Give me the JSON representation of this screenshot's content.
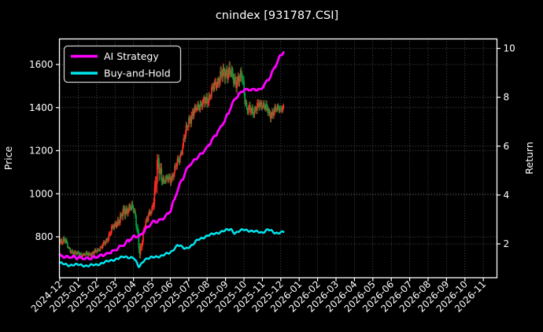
{
  "title": "cnindex [931787.CSI]",
  "chart_data": {
    "type": "candlestick+line",
    "title": "cnindex [931787.CSI]",
    "background_color": "#000000",
    "text_color": "#ffffff",
    "grid": "dotted",
    "x_axis": {
      "tick_labels": [
        "2024-12",
        "2025-01",
        "2025-02",
        "2025-03",
        "2025-04",
        "2025-05",
        "2025-06",
        "2025-07",
        "2025-08",
        "2025-09",
        "2025-10",
        "2025-11",
        "2025-12",
        "2026-01",
        "2026-02",
        "2026-03",
        "2026-04",
        "2026-05",
        "2026-06",
        "2026-07",
        "2026-08",
        "2026-09",
        "2026-10",
        "2026-11"
      ],
      "data_span_months": 12.15,
      "data_start": "2024-12",
      "data_end": "2025-12"
    },
    "price_axis": {
      "label": "Price",
      "side": "left",
      "ticks": [
        800,
        1000,
        1200,
        1400,
        1600
      ],
      "range": [
        610,
        1720
      ]
    },
    "return_axis": {
      "label": "Return",
      "side": "right",
      "ticks": [
        2,
        4,
        6,
        8,
        10
      ],
      "range": [
        0.6,
        10.4
      ]
    },
    "legend": {
      "position": "upper-left",
      "items": [
        {
          "label": "AI Strategy",
          "color": "#ff00ff"
        },
        {
          "label": "Buy-and-Hold",
          "color": "#00e5ee"
        }
      ]
    },
    "series": [
      {
        "name": "AI Strategy",
        "type": "line",
        "axis": "return",
        "color": "#ff00ff",
        "width": 2.8,
        "points": [
          [
            0,
            1.5
          ],
          [
            0.5,
            1.46
          ],
          [
            1,
            1.44
          ],
          [
            1.5,
            1.38
          ],
          [
            2,
            1.47
          ],
          [
            2.5,
            1.58
          ],
          [
            3,
            1.74
          ],
          [
            3.5,
            2.0
          ],
          [
            4,
            2.28
          ],
          [
            4.35,
            2.33
          ],
          [
            4.6,
            2.55
          ],
          [
            5,
            2.87
          ],
          [
            5.5,
            2.97
          ],
          [
            6,
            3.35
          ],
          [
            6.5,
            4.4
          ],
          [
            7,
            5.2
          ],
          [
            7.5,
            5.55
          ],
          [
            8,
            5.95
          ],
          [
            8.5,
            6.5
          ],
          [
            9,
            7.1
          ],
          [
            9.5,
            7.95
          ],
          [
            10,
            8.3
          ],
          [
            10.9,
            8.32
          ],
          [
            11.3,
            8.7
          ],
          [
            11.6,
            9.1
          ],
          [
            11.9,
            9.6
          ],
          [
            12.15,
            9.85
          ]
        ]
      },
      {
        "name": "Buy-and-Hold",
        "type": "line",
        "axis": "return",
        "color": "#00e5ee",
        "width": 2.5,
        "points": [
          [
            0,
            1.21
          ],
          [
            0.5,
            1.13
          ],
          [
            1,
            1.15
          ],
          [
            1.5,
            1.1
          ],
          [
            2,
            1.15
          ],
          [
            2.5,
            1.26
          ],
          [
            3,
            1.37
          ],
          [
            3.5,
            1.47
          ],
          [
            4,
            1.44
          ],
          [
            4.3,
            1.05
          ],
          [
            4.6,
            1.37
          ],
          [
            5,
            1.44
          ],
          [
            5.5,
            1.51
          ],
          [
            6,
            1.64
          ],
          [
            6.4,
            1.96
          ],
          [
            6.8,
            1.8
          ],
          [
            7.2,
            1.95
          ],
          [
            7.5,
            2.17
          ],
          [
            8,
            2.33
          ],
          [
            8.5,
            2.44
          ],
          [
            9,
            2.55
          ],
          [
            9.3,
            2.6
          ],
          [
            9.5,
            2.44
          ],
          [
            10,
            2.59
          ],
          [
            10.5,
            2.51
          ],
          [
            11,
            2.47
          ],
          [
            11.3,
            2.59
          ],
          [
            11.7,
            2.44
          ],
          [
            12.15,
            2.5
          ]
        ]
      },
      {
        "name": "cnindex daily candles",
        "type": "candlestick",
        "axis": "price",
        "up_color": "#ff2d24",
        "down_color": "#00a43c",
        "candles_per_month": 21,
        "close_amp_anchors": [
          [
            0,
            770,
            22
          ],
          [
            0.26,
            790,
            26
          ],
          [
            0.5,
            735,
            18
          ],
          [
            1,
            722,
            15
          ],
          [
            1.5,
            718,
            16
          ],
          [
            2,
            730,
            15
          ],
          [
            2.5,
            775,
            20
          ],
          [
            2.8,
            840,
            25
          ],
          [
            3,
            855,
            28
          ],
          [
            3.4,
            905,
            40
          ],
          [
            3.7,
            930,
            35
          ],
          [
            4,
            925,
            30
          ],
          [
            4.15,
            880,
            50
          ],
          [
            4.35,
            705,
            40
          ],
          [
            4.6,
            865,
            28
          ],
          [
            5,
            925,
            30
          ],
          [
            5.3,
            1120,
            95
          ],
          [
            5.6,
            1060,
            35
          ],
          [
            6,
            1065,
            30
          ],
          [
            6.5,
            1170,
            35
          ],
          [
            7,
            1340,
            40
          ],
          [
            7.5,
            1400,
            35
          ],
          [
            8,
            1440,
            38
          ],
          [
            8.5,
            1520,
            42
          ],
          [
            9,
            1565,
            55
          ],
          [
            9.3,
            1545,
            55
          ],
          [
            9.6,
            1520,
            45
          ],
          [
            9.9,
            1555,
            48
          ],
          [
            10.15,
            1390,
            42
          ],
          [
            10.5,
            1385,
            35
          ],
          [
            11,
            1415,
            35
          ],
          [
            11.4,
            1370,
            35
          ],
          [
            11.8,
            1398,
            30
          ],
          [
            12.15,
            1400,
            25
          ]
        ]
      }
    ]
  }
}
